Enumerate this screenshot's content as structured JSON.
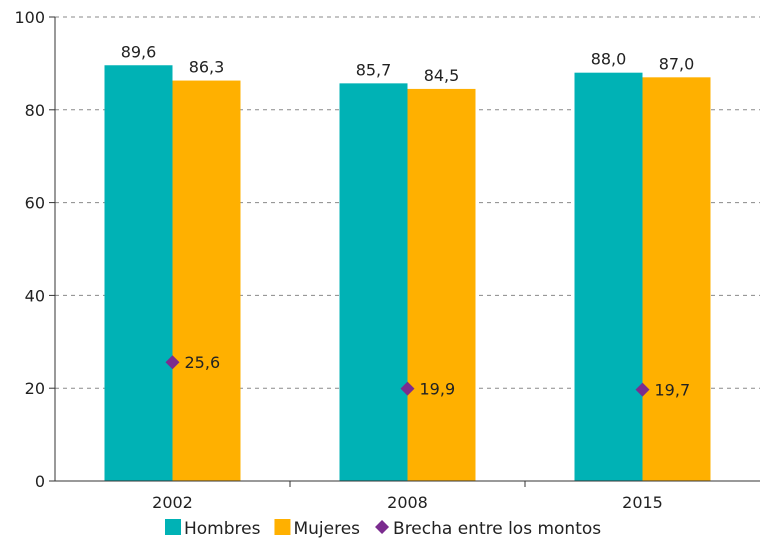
{
  "chart_data": {
    "type": "bar",
    "categories": [
      "2002",
      "2008",
      "2015"
    ],
    "series": [
      {
        "name": "Hombres",
        "type": "bar",
        "color": "#00B2B5",
        "values": [
          89.6,
          85.7,
          88.0
        ],
        "labels": [
          "89,6",
          "85,7",
          "88,0"
        ]
      },
      {
        "name": "Mujeres",
        "type": "bar",
        "color": "#FFB000",
        "values": [
          86.3,
          84.5,
          87.0
        ],
        "labels": [
          "86,3",
          "84,5",
          "87,0"
        ]
      },
      {
        "name": "Brecha entre los montos",
        "type": "scatter",
        "marker": "diamond",
        "color": "#7B2C8F",
        "values": [
          25.6,
          19.9,
          19.7
        ],
        "labels": [
          "25,6",
          "19,9",
          "19,7"
        ]
      }
    ],
    "ylim": [
      0,
      100
    ],
    "yticks": [
      "0",
      "20",
      "40",
      "60",
      "80",
      "100"
    ],
    "grid": true,
    "legend": "bottom"
  }
}
